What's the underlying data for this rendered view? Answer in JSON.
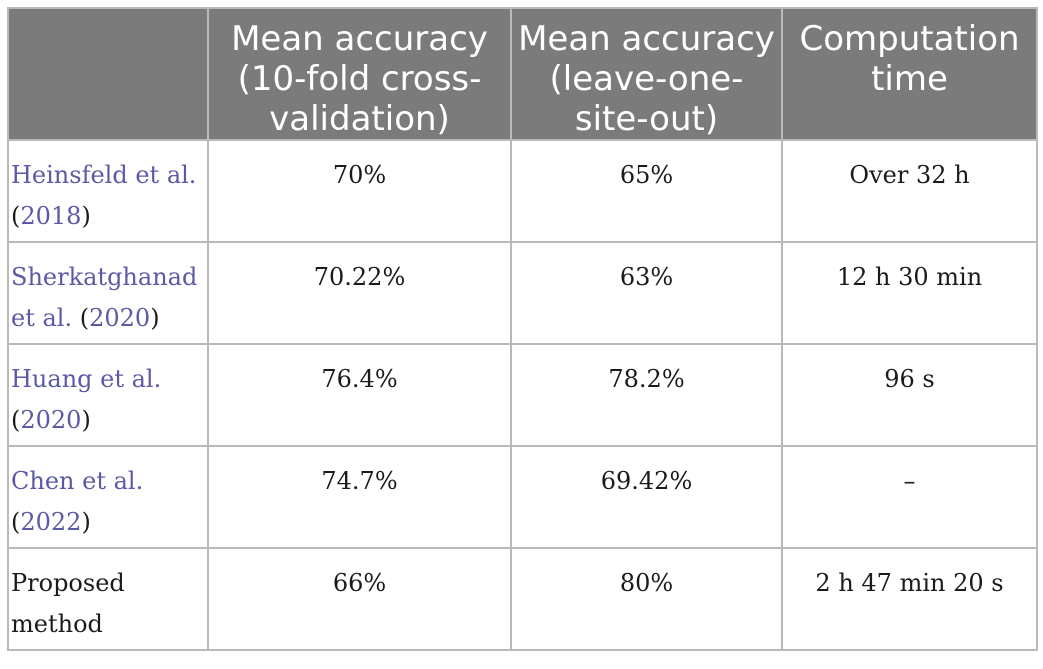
{
  "table": {
    "headers": [
      "",
      "Mean accuracy (10-fold cross-validation)",
      "Mean accuracy (leave-one-site-out)",
      "Computation time"
    ],
    "rows": [
      {
        "authors": "Heinsfeld et al.",
        "year": "2018",
        "acc_10fold": "70%",
        "acc_loso": "65%",
        "time": "Over 32 h"
      },
      {
        "authors": "Sherkatghanad",
        "authors2": "et al.",
        "year": "2020",
        "acc_10fold": "70.22%",
        "acc_loso": "63%",
        "time": "12 h 30 min"
      },
      {
        "authors": "Huang et al.",
        "year": "2020",
        "acc_10fold": "76.4%",
        "acc_loso": "78.2%",
        "time": "96 s"
      },
      {
        "authors": "Chen et al.",
        "year": "2022",
        "acc_10fold": "74.7%",
        "acc_loso": "69.42%",
        "time": "–"
      },
      {
        "method_line1": "Proposed",
        "method_line2": "method",
        "acc_10fold": "66%",
        "acc_loso": "80%",
        "time": "2 h 47 min 20 s"
      }
    ]
  },
  "colors": {
    "header_bg": "#7b7b7b",
    "header_text": "#ffffff",
    "grid": "#b9b9b9",
    "citation_link": "#5a5aa6",
    "body_text": "#1b1b1b"
  }
}
